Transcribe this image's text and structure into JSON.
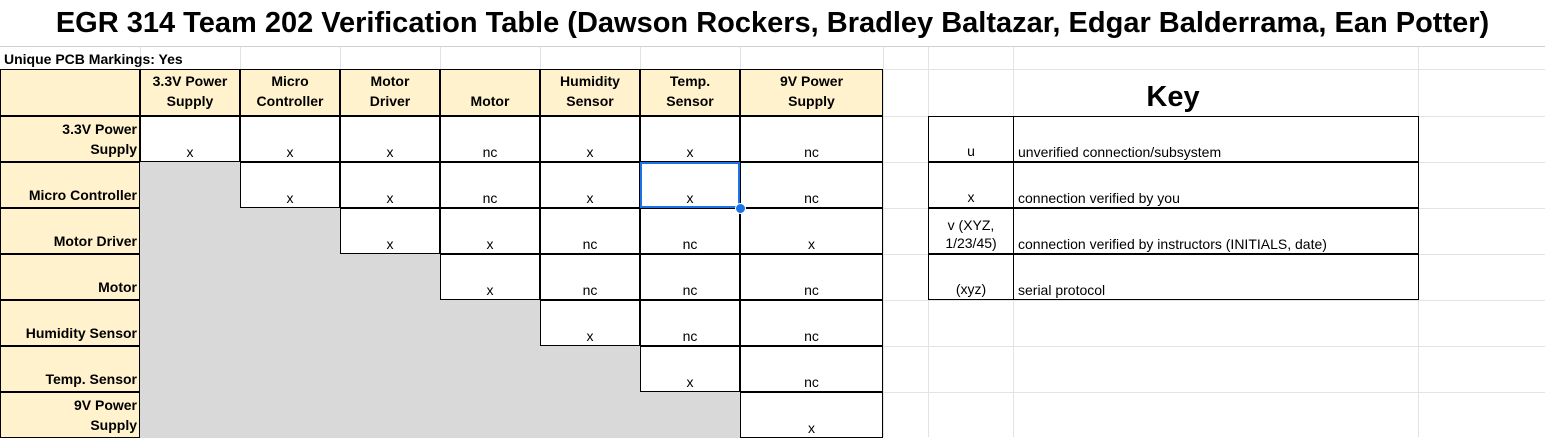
{
  "title": "EGR 314 Team 202 Verification Table (Dawson Rockers, Bradley Baltazar, Edgar Balderrama, Ean Potter)",
  "pcb_markings": "Unique PCB Markings: Yes",
  "columns": [
    "3.3V Power Supply",
    "Micro Controller",
    "Motor Driver",
    "Motor",
    "Humidity Sensor",
    "Temp. Sensor",
    "9V Power Supply"
  ],
  "column_lines": [
    [
      "3.3V Power",
      "Supply"
    ],
    [
      "Micro",
      "Controller"
    ],
    [
      "Motor",
      "Driver"
    ],
    [
      "",
      "Motor"
    ],
    [
      "Humidity",
      "Sensor"
    ],
    [
      "Temp.",
      "Sensor"
    ],
    [
      "9V Power",
      "Supply"
    ]
  ],
  "rows": [
    {
      "label_lines": [
        "3.3V Power",
        "Supply"
      ],
      "cells": [
        "x",
        "x",
        "x",
        "nc",
        "x",
        "x",
        "nc"
      ]
    },
    {
      "label_lines": [
        "",
        "Micro Controller"
      ],
      "cells": [
        "",
        "x",
        "x",
        "nc",
        "x",
        "x",
        "nc"
      ]
    },
    {
      "label_lines": [
        "",
        "Motor Driver"
      ],
      "cells": [
        "",
        "",
        "x",
        "x",
        "nc",
        "nc",
        "x"
      ]
    },
    {
      "label_lines": [
        "",
        "Motor"
      ],
      "cells": [
        "",
        "",
        "",
        "x",
        "nc",
        "nc",
        "nc"
      ]
    },
    {
      "label_lines": [
        "",
        "Humidity Sensor"
      ],
      "cells": [
        "",
        "",
        "",
        "",
        "x",
        "nc",
        "nc"
      ]
    },
    {
      "label_lines": [
        "",
        "Temp. Sensor"
      ],
      "cells": [
        "",
        "",
        "",
        "",
        "",
        "x",
        "nc"
      ]
    },
    {
      "label_lines": [
        "9V Power",
        "Supply"
      ],
      "cells": [
        "",
        "",
        "",
        "",
        "",
        "",
        "x"
      ]
    }
  ],
  "key": {
    "title": "Key",
    "items": [
      {
        "symbol_lines": [
          "u"
        ],
        "description": "unverified connection/subsystem"
      },
      {
        "symbol_lines": [
          "x"
        ],
        "description": "connection verified by you"
      },
      {
        "symbol_lines": [
          "v (XYZ,",
          "1/23/45)"
        ],
        "description": "connection verified by instructors (INITIALS, date)"
      },
      {
        "symbol_lines": [
          "(xyz)"
        ],
        "description": "serial protocol"
      }
    ]
  },
  "selected_cell": {
    "row": "Micro Controller",
    "column": "Temp. Sensor",
    "value": "x"
  },
  "colors": {
    "header_fill": "#fff2cc",
    "disabled_fill": "#d9d9d9",
    "selection": "#1a73e8"
  }
}
